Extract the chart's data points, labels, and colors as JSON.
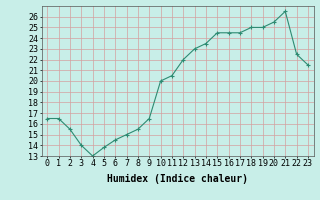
{
  "x": [
    0,
    1,
    2,
    3,
    4,
    5,
    6,
    7,
    8,
    9,
    10,
    11,
    12,
    13,
    14,
    15,
    16,
    17,
    18,
    19,
    20,
    21,
    22,
    23
  ],
  "y": [
    16.5,
    16.5,
    15.5,
    14.0,
    13.0,
    13.8,
    14.5,
    15.0,
    15.5,
    16.5,
    20.0,
    20.5,
    22.0,
    23.0,
    23.5,
    24.5,
    24.5,
    24.5,
    25.0,
    25.0,
    25.5,
    26.5,
    22.5,
    21.5
  ],
  "line_color": "#2d8b72",
  "marker": "+",
  "marker_size": 3,
  "bg_color": "#c8eee8",
  "grid_color": "#d4a0a0",
  "xlabel": "Humidex (Indice chaleur)",
  "xlim": [
    -0.5,
    23.5
  ],
  "ylim": [
    13,
    27
  ],
  "yticks": [
    13,
    14,
    15,
    16,
    17,
    18,
    19,
    20,
    21,
    22,
    23,
    24,
    25,
    26
  ],
  "xticks": [
    0,
    1,
    2,
    3,
    4,
    5,
    6,
    7,
    8,
    9,
    10,
    11,
    12,
    13,
    14,
    15,
    16,
    17,
    18,
    19,
    20,
    21,
    22,
    23
  ],
  "font_size_label": 7,
  "font_size_tick": 6
}
